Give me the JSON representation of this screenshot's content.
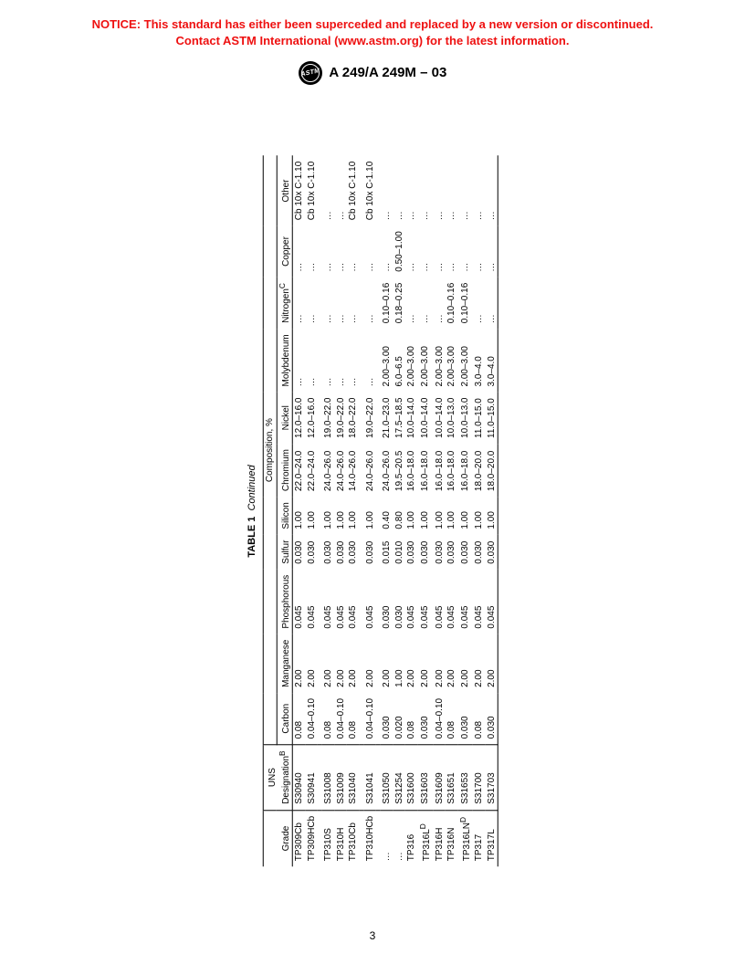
{
  "notice": {
    "line1": "NOTICE: This standard has either been superceded and replaced by a new version or discontinued.",
    "line2": "Contact ASTM International (www.astm.org) for the latest information.",
    "color": "#ee1111"
  },
  "header": {
    "logo_text": "ASTM",
    "designation": "A 249/A 249M – 03"
  },
  "table": {
    "caption_label": "TABLE 1",
    "caption_cont": "Continued",
    "composition_header": "Composition, %",
    "columns": [
      "Grade",
      "UNS Designationᴮ",
      "Carbon",
      "Manganese",
      "Phosphorous",
      "Sulfur",
      "Silicon",
      "Chromium",
      "Nickel",
      "Molybdenum",
      "Nitrogenᶜ",
      "Copper",
      "Other"
    ],
    "rows": [
      [
        "TP309Cb",
        "S30940",
        "0.08",
        "2.00",
        "0.045",
        "0.030",
        "1.00",
        "22.0–24.0",
        "12.0–16.0",
        "…",
        "…",
        "…",
        "Cb 10x C-1.10"
      ],
      [
        "TP309HCb",
        "S30941",
        "0.04–0.10",
        "2.00",
        "0.045",
        "0.030",
        "1.00",
        "22.0–24.0",
        "12.0–16.0",
        "…",
        "…",
        "…",
        "Cb 10x C-1.10"
      ],
      [
        "TP310S",
        "S31008",
        "0.08",
        "2.00",
        "0.045",
        "0.030",
        "1.00",
        "24.0–26.0",
        "19.0–22.0",
        "…",
        "…",
        "…",
        "…"
      ],
      [
        "TP310H",
        "S31009",
        "0.04–0.10",
        "2.00",
        "0.045",
        "0.030",
        "1.00",
        "24.0–26.0",
        "19.0–22.0",
        "…",
        "…",
        "…",
        "…"
      ],
      [
        "TP310Cb",
        "S31040",
        "0.08",
        "2.00",
        "0.045",
        "0.030",
        "1.00",
        "14.0–26.0",
        "18.0–22.0",
        "…",
        "…",
        "…",
        "Cb 10x C-1.10"
      ],
      [
        "TP310HCb",
        "S31041",
        "0.04–0.10",
        "2.00",
        "0.045",
        "0.030",
        "1.00",
        "24.0–26.0",
        "19.0–22.0",
        "…",
        "…",
        "…",
        "Cb 10x C-1.10"
      ],
      [
        "…",
        "S31050",
        "0.030",
        "2.00",
        "0.030",
        "0.015",
        "0.40",
        "24.0–26.0",
        "21.0–23.0",
        "2.00–3.00",
        "0.10–0.16",
        "…",
        "…"
      ],
      [
        "…",
        "S31254",
        "0.020",
        "1.00",
        "0.030",
        "0.010",
        "0.80",
        "19.5–20.5",
        "17.5–18.5",
        "6.0–6.5",
        "0.18–0.25",
        "0.50–1.00",
        "…"
      ],
      [
        "TP316",
        "S31600",
        "0.08",
        "2.00",
        "0.045",
        "0.030",
        "1.00",
        "16.0–18.0",
        "10.0–14.0",
        "2.00–3.00",
        "…",
        "…",
        "…"
      ],
      [
        "TP316Lᴰ",
        "S31603",
        "0.030",
        "2.00",
        "0.045",
        "0.030",
        "1.00",
        "16.0–18.0",
        "10.0–14.0",
        "2.00–3.00",
        "…",
        "…",
        "…"
      ],
      [
        "TP316H",
        "S31609",
        "0.04–0.10",
        "2.00",
        "0.045",
        "0.030",
        "1.00",
        "16.0–18.0",
        "10.0–14.0",
        "2.00–3.00",
        "…",
        "…",
        "…"
      ],
      [
        "TP316N",
        "S31651",
        "0.08",
        "2.00",
        "0.045",
        "0.030",
        "1.00",
        "16.0–18.0",
        "10.0–13.0",
        "2.00–3.00",
        "0.10–0.16",
        "…",
        "…"
      ],
      [
        "TP316LNᴰ",
        "S31653",
        "0.030",
        "2.00",
        "0.045",
        "0.030",
        "1.00",
        "16.0–18.0",
        "10.0–13.0",
        "2.00–3.00",
        "0.10–0.16",
        "…",
        "…"
      ],
      [
        "TP317",
        "S31700",
        "0.08",
        "2.00",
        "0.045",
        "0.030",
        "1.00",
        "18.0–20.0",
        "11.0–15.0",
        "3.0–4.0",
        "…",
        "…",
        "…"
      ],
      [
        "TP317L",
        "S31703",
        "0.030",
        "2.00",
        "0.045",
        "0.030",
        "1.00",
        "18.0–20.0",
        "11.0–15.0",
        "3.0–4.0",
        "…",
        "…",
        "…"
      ]
    ],
    "group_breaks_after": [
      1,
      4,
      5
    ]
  },
  "page_number": "3"
}
